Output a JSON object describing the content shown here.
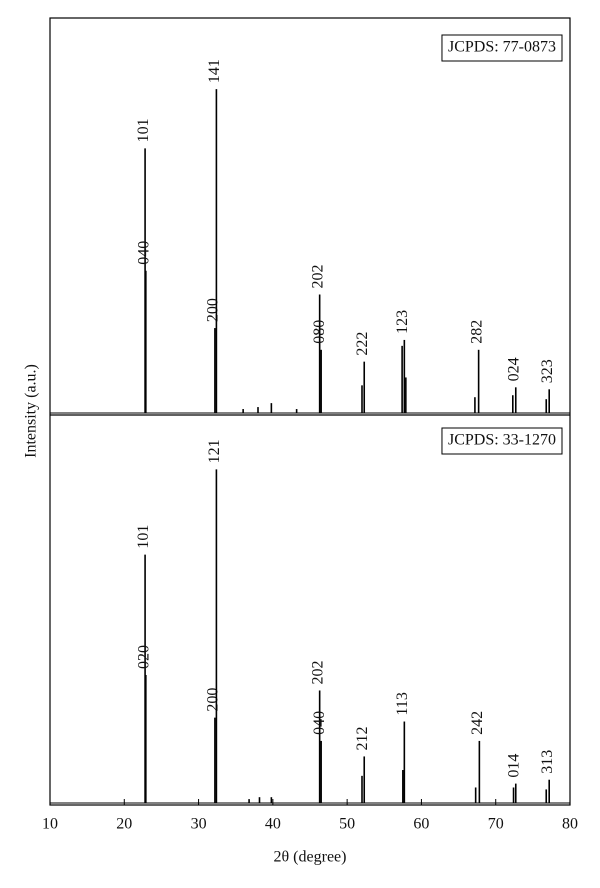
{
  "chart_data": [
    {
      "type": "stem",
      "label": "JCPDS: 77-0873",
      "ylabel": "Intensity (a.u.)",
      "color": "#000000",
      "xlim": [
        10,
        80
      ],
      "ylim": [
        0,
        100
      ],
      "x": [
        22.8,
        22.9,
        32.2,
        32.4,
        36.0,
        38.0,
        39.8,
        43.2,
        46.3,
        46.5,
        52.0,
        52.3,
        57.4,
        57.7,
        57.9,
        67.2,
        67.7,
        72.3,
        72.7,
        76.8,
        77.2
      ],
      "values": [
        67,
        36,
        21.5,
        82,
        1,
        1.5,
        2.5,
        1,
        30,
        16,
        7,
        13,
        17,
        18.5,
        9,
        4,
        16,
        4.5,
        6.5,
        3.5,
        6
      ],
      "peak_labels": [
        "101",
        "040",
        "200",
        "141",
        null,
        null,
        null,
        null,
        "202",
        "080",
        null,
        "222",
        null,
        "123",
        null,
        null,
        "282",
        null,
        "024",
        null,
        "323"
      ]
    },
    {
      "type": "stem",
      "label": "JCPDS: 33-1270",
      "xlabel": "2θ (degree)",
      "color": "#000000",
      "xlim": [
        10,
        80
      ],
      "ylim": [
        0,
        100
      ],
      "xticks": [
        10,
        20,
        30,
        40,
        50,
        60,
        70,
        80
      ],
      "x": [
        22.8,
        22.9,
        32.2,
        32.4,
        36.8,
        38.2,
        39.8,
        46.3,
        46.5,
        52.0,
        52.3,
        57.5,
        57.7,
        67.3,
        67.8,
        72.4,
        72.7,
        76.8,
        77.2
      ],
      "values": [
        64,
        33,
        22,
        86,
        1,
        1.5,
        1.5,
        29,
        16,
        7,
        12,
        8.5,
        21,
        4,
        16,
        4,
        5,
        3.5,
        6
      ],
      "peak_labels": [
        "101",
        "020",
        "200",
        "121",
        null,
        null,
        null,
        "202",
        "040",
        null,
        "212",
        null,
        "113",
        null,
        "242",
        null,
        "014",
        null,
        "313"
      ]
    }
  ]
}
